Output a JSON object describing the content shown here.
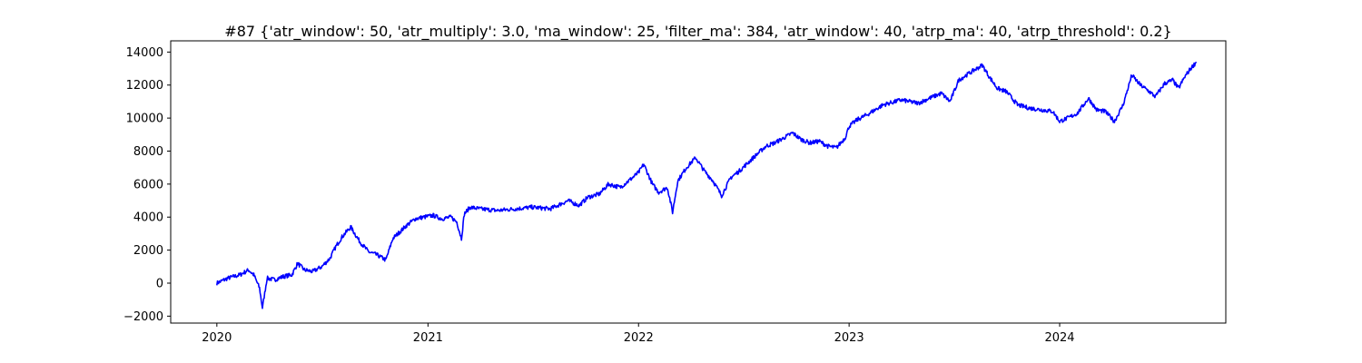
{
  "chart_data": {
    "type": "line",
    "title": "#87 {'atr_window': 50, 'atr_multiply': 3.0, 'ma_window': 25, 'filter_ma': 384, 'atr_window': 40, 'atrp_ma': 40, 'atrp_threshold': 0.2}",
    "xlabel": "",
    "ylabel": "",
    "x_axis_type": "date",
    "xlim": [
      "2019-10-13",
      "2024-10-15"
    ],
    "ylim": [
      -2420,
      14680
    ],
    "grid": false,
    "line_color": "#0000ff",
    "x_ticks": [
      {
        "value": "2020-01-01",
        "label": "2020"
      },
      {
        "value": "2021-01-01",
        "label": "2021"
      },
      {
        "value": "2022-01-01",
        "label": "2022"
      },
      {
        "value": "2023-01-01",
        "label": "2023"
      },
      {
        "value": "2024-01-01",
        "label": "2024"
      }
    ],
    "y_ticks": [
      {
        "value": -2000,
        "label": "−2000"
      },
      {
        "value": 0,
        "label": "0"
      },
      {
        "value": 2000,
        "label": "2000"
      },
      {
        "value": 4000,
        "label": "4000"
      },
      {
        "value": 6000,
        "label": "6000"
      },
      {
        "value": 8000,
        "label": "8000"
      },
      {
        "value": 10000,
        "label": "10000"
      },
      {
        "value": 12000,
        "label": "12000"
      },
      {
        "value": 14000,
        "label": "14000"
      }
    ],
    "series": [
      {
        "x": [
          "2020-01-01",
          "2020-01-20",
          "2020-02-10",
          "2020-02-25",
          "2020-03-05",
          "2020-03-15",
          "2020-03-20",
          "2020-03-28",
          "2020-04-10",
          "2020-04-25",
          "2020-05-10",
          "2020-05-20",
          "2020-06-01",
          "2020-06-15",
          "2020-07-01",
          "2020-07-15",
          "2020-07-25",
          "2020-08-05",
          "2020-08-20",
          "2020-09-05",
          "2020-09-20",
          "2020-10-05",
          "2020-10-20",
          "2020-11-01",
          "2020-11-10",
          "2020-11-25",
          "2020-12-10",
          "2020-12-25",
          "2021-01-10",
          "2021-01-25",
          "2021-02-10",
          "2021-02-20",
          "2021-02-28",
          "2021-03-05",
          "2021-03-15",
          "2021-04-01",
          "2021-05-01",
          "2021-06-01",
          "2021-07-01",
          "2021-08-01",
          "2021-09-01",
          "2021-09-20",
          "2021-10-05",
          "2021-10-25",
          "2021-11-10",
          "2021-11-30",
          "2021-12-15",
          "2022-01-01",
          "2022-01-10",
          "2022-01-25",
          "2022-02-05",
          "2022-02-20",
          "2022-03-01",
          "2022-03-10",
          "2022-03-25",
          "2022-04-10",
          "2022-04-25",
          "2022-05-10",
          "2022-05-25",
          "2022-06-10",
          "2022-06-25",
          "2022-07-10",
          "2022-07-25",
          "2022-08-10",
          "2022-08-25",
          "2022-09-10",
          "2022-09-25",
          "2022-10-10",
          "2022-10-25",
          "2022-11-10",
          "2022-11-25",
          "2022-12-10",
          "2022-12-25",
          "2023-01-01",
          "2023-01-15",
          "2023-02-01",
          "2023-03-01",
          "2023-04-01",
          "2023-05-01",
          "2023-05-20",
          "2023-06-10",
          "2023-06-25",
          "2023-07-10",
          "2023-08-01",
          "2023-08-20",
          "2023-09-01",
          "2023-09-15",
          "2023-10-01",
          "2023-10-20",
          "2023-11-10",
          "2023-12-01",
          "2023-12-20",
          "2024-01-01",
          "2024-01-15",
          "2024-02-01",
          "2024-02-20",
          "2024-03-05",
          "2024-03-20",
          "2024-04-05",
          "2024-04-20",
          "2024-05-05",
          "2024-05-20",
          "2024-06-01",
          "2024-06-15",
          "2024-07-01",
          "2024-07-15",
          "2024-07-25",
          "2024-08-05",
          "2024-08-15",
          "2024-08-25"
        ],
        "y": [
          0,
          300,
          500,
          800,
          500,
          -300,
          -1500,
          300,
          200,
          400,
          500,
          1200,
          800,
          700,
          1000,
          1500,
          2200,
          2800,
          3400,
          2500,
          1900,
          1700,
          1400,
          2700,
          3000,
          3500,
          3900,
          4000,
          4100,
          3900,
          4000,
          3700,
          2700,
          4200,
          4600,
          4500,
          4400,
          4500,
          4600,
          4500,
          5000,
          4700,
          5200,
          5400,
          6000,
          5800,
          6200,
          6700,
          7200,
          6000,
          5500,
          5800,
          4300,
          6200,
          7000,
          7600,
          6800,
          6200,
          5300,
          6400,
          6800,
          7300,
          7800,
          8300,
          8500,
          8800,
          9100,
          8700,
          8500,
          8600,
          8300,
          8200,
          8800,
          9500,
          9900,
          10200,
          10800,
          11100,
          10900,
          11200,
          11500,
          11000,
          12300,
          12800,
          13200,
          12500,
          11800,
          11600,
          10800,
          10600,
          10500,
          10400,
          9800,
          10000,
          10300,
          11200,
          10500,
          10400,
          9800,
          10800,
          12600,
          12000,
          11700,
          11300,
          12100,
          12300,
          11800,
          12500,
          13000,
          13400
        ]
      }
    ]
  }
}
